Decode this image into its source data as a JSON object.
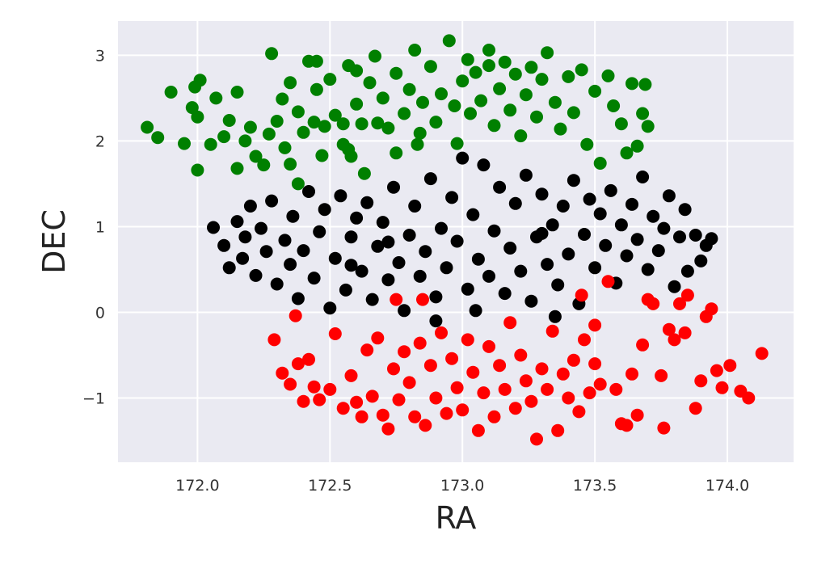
{
  "chart_data": {
    "type": "scatter",
    "title": "",
    "xlabel": "RA",
    "ylabel": "DEC",
    "xlim": [
      171.7,
      174.25
    ],
    "ylim": [
      -1.75,
      3.4
    ],
    "xticks": [
      172.0,
      172.5,
      173.0,
      173.5,
      174.0
    ],
    "xtick_labels": [
      "172.0",
      "172.5",
      "173.0",
      "173.5",
      "174.0"
    ],
    "yticks": [
      -1,
      0,
      1,
      2,
      3
    ],
    "ytick_labels": [
      "−1",
      "0",
      "1",
      "2",
      "3"
    ],
    "grid": true,
    "background": "#eaeaf2",
    "series": [
      {
        "color": "#008000",
        "points": [
          [
            171.81,
            2.16
          ],
          [
            171.85,
            2.04
          ],
          [
            171.9,
            2.57
          ],
          [
            171.95,
            1.97
          ],
          [
            171.98,
            2.39
          ],
          [
            171.99,
            2.63
          ],
          [
            172.0,
            2.28
          ],
          [
            172.01,
            2.71
          ],
          [
            172.0,
            1.66
          ],
          [
            172.05,
            1.96
          ],
          [
            172.07,
            2.5
          ],
          [
            172.1,
            2.05
          ],
          [
            172.12,
            2.24
          ],
          [
            172.15,
            1.68
          ],
          [
            172.15,
            2.57
          ],
          [
            172.18,
            2.0
          ],
          [
            172.2,
            2.16
          ],
          [
            172.22,
            1.82
          ],
          [
            172.25,
            1.72
          ],
          [
            172.27,
            2.08
          ],
          [
            172.3,
            2.23
          ],
          [
            172.28,
            3.02
          ],
          [
            172.32,
            2.49
          ],
          [
            172.33,
            1.92
          ],
          [
            172.35,
            2.68
          ],
          [
            172.35,
            1.73
          ],
          [
            172.38,
            2.34
          ],
          [
            172.4,
            2.1
          ],
          [
            172.42,
            2.93
          ],
          [
            172.44,
            2.22
          ],
          [
            172.45,
            2.6
          ],
          [
            172.47,
            1.83
          ],
          [
            172.48,
            2.17
          ],
          [
            172.5,
            2.72
          ],
          [
            172.52,
            2.3
          ],
          [
            172.55,
            1.96
          ],
          [
            172.57,
            2.88
          ],
          [
            172.58,
            1.82
          ],
          [
            172.6,
            2.43
          ],
          [
            172.62,
            2.2
          ],
          [
            172.63,
            1.62
          ],
          [
            172.65,
            2.68
          ],
          [
            172.67,
            2.99
          ],
          [
            172.7,
            2.5
          ],
          [
            172.72,
            2.15
          ],
          [
            172.75,
            2.79
          ],
          [
            172.75,
            1.86
          ],
          [
            172.78,
            2.32
          ],
          [
            172.8,
            2.6
          ],
          [
            172.82,
            3.06
          ],
          [
            172.84,
            2.09
          ],
          [
            172.85,
            2.45
          ],
          [
            172.88,
            2.87
          ],
          [
            172.9,
            2.22
          ],
          [
            172.92,
            2.55
          ],
          [
            172.95,
            3.17
          ],
          [
            172.97,
            2.41
          ],
          [
            172.98,
            1.97
          ],
          [
            173.0,
            2.7
          ],
          [
            173.02,
            2.95
          ],
          [
            173.03,
            2.32
          ],
          [
            173.05,
            2.8
          ],
          [
            173.07,
            2.47
          ],
          [
            173.1,
            3.06
          ],
          [
            173.12,
            2.18
          ],
          [
            173.14,
            2.61
          ],
          [
            173.16,
            2.92
          ],
          [
            173.18,
            2.36
          ],
          [
            173.2,
            2.78
          ],
          [
            173.22,
            2.06
          ],
          [
            173.24,
            2.54
          ],
          [
            173.26,
            2.86
          ],
          [
            173.28,
            2.28
          ],
          [
            173.3,
            2.72
          ],
          [
            173.32,
            3.03
          ],
          [
            173.35,
            2.45
          ],
          [
            173.37,
            2.14
          ],
          [
            173.4,
            2.75
          ],
          [
            173.42,
            2.33
          ],
          [
            173.45,
            2.83
          ],
          [
            173.47,
            1.96
          ],
          [
            173.5,
            2.58
          ],
          [
            173.52,
            1.74
          ],
          [
            173.55,
            2.76
          ],
          [
            173.57,
            2.41
          ],
          [
            173.6,
            2.2
          ],
          [
            173.62,
            1.86
          ],
          [
            173.64,
            2.67
          ],
          [
            173.66,
            1.94
          ],
          [
            173.68,
            2.32
          ],
          [
            173.69,
            2.66
          ],
          [
            173.7,
            2.17
          ],
          [
            172.45,
            2.93
          ],
          [
            172.6,
            2.82
          ],
          [
            172.55,
            2.2
          ],
          [
            173.1,
            2.88
          ],
          [
            172.68,
            2.21
          ],
          [
            172.83,
            1.96
          ],
          [
            172.38,
            1.5
          ],
          [
            172.57,
            1.9
          ]
        ]
      },
      {
        "color": "#000000",
        "points": [
          [
            172.06,
            0.99
          ],
          [
            172.1,
            0.78
          ],
          [
            172.12,
            0.52
          ],
          [
            172.15,
            1.06
          ],
          [
            172.17,
            0.63
          ],
          [
            172.18,
            0.88
          ],
          [
            172.2,
            1.24
          ],
          [
            172.22,
            0.43
          ],
          [
            172.24,
            0.98
          ],
          [
            172.26,
            0.71
          ],
          [
            172.28,
            1.3
          ],
          [
            172.3,
            0.33
          ],
          [
            172.33,
            0.84
          ],
          [
            172.35,
            0.56
          ],
          [
            172.36,
            1.12
          ],
          [
            172.38,
            0.16
          ],
          [
            172.4,
            0.72
          ],
          [
            172.42,
            1.41
          ],
          [
            172.44,
            0.4
          ],
          [
            172.46,
            0.94
          ],
          [
            172.48,
            1.2
          ],
          [
            172.5,
            0.05
          ],
          [
            172.52,
            0.63
          ],
          [
            172.54,
            1.36
          ],
          [
            172.56,
            0.26
          ],
          [
            172.58,
            0.88
          ],
          [
            172.6,
            1.1
          ],
          [
            172.62,
            0.48
          ],
          [
            172.64,
            1.28
          ],
          [
            172.66,
            0.15
          ],
          [
            172.68,
            0.77
          ],
          [
            172.7,
            1.05
          ],
          [
            172.72,
            0.38
          ],
          [
            172.74,
            1.46
          ],
          [
            172.76,
            0.58
          ],
          [
            172.78,
            0.02
          ],
          [
            172.8,
            0.9
          ],
          [
            172.82,
            1.24
          ],
          [
            172.84,
            0.42
          ],
          [
            172.86,
            0.71
          ],
          [
            172.88,
            1.56
          ],
          [
            172.9,
            0.18
          ],
          [
            172.92,
            0.98
          ],
          [
            172.94,
            0.52
          ],
          [
            172.96,
            1.34
          ],
          [
            172.98,
            0.83
          ],
          [
            173.0,
            1.8
          ],
          [
            173.02,
            0.27
          ],
          [
            173.04,
            1.14
          ],
          [
            173.06,
            0.62
          ],
          [
            173.08,
            1.72
          ],
          [
            173.1,
            0.42
          ],
          [
            173.12,
            0.95
          ],
          [
            173.14,
            1.46
          ],
          [
            173.16,
            0.22
          ],
          [
            173.18,
            0.75
          ],
          [
            173.2,
            1.27
          ],
          [
            173.22,
            0.48
          ],
          [
            173.24,
            1.6
          ],
          [
            173.26,
            0.13
          ],
          [
            173.28,
            0.88
          ],
          [
            173.3,
            1.38
          ],
          [
            173.32,
            0.56
          ],
          [
            173.34,
            1.02
          ],
          [
            173.36,
            0.32
          ],
          [
            173.38,
            1.24
          ],
          [
            173.4,
            0.68
          ],
          [
            173.42,
            1.54
          ],
          [
            173.44,
            0.1
          ],
          [
            173.46,
            0.91
          ],
          [
            173.48,
            1.32
          ],
          [
            173.5,
            0.52
          ],
          [
            173.52,
            1.15
          ],
          [
            173.54,
            0.78
          ],
          [
            173.56,
            1.42
          ],
          [
            173.58,
            0.34
          ],
          [
            173.6,
            1.02
          ],
          [
            173.62,
            0.66
          ],
          [
            173.64,
            1.26
          ],
          [
            173.66,
            0.85
          ],
          [
            173.68,
            1.58
          ],
          [
            173.7,
            0.5
          ],
          [
            173.72,
            1.12
          ],
          [
            173.74,
            0.72
          ],
          [
            173.76,
            0.98
          ],
          [
            173.78,
            1.36
          ],
          [
            173.8,
            0.3
          ],
          [
            173.82,
            0.88
          ],
          [
            173.84,
            1.2
          ],
          [
            173.85,
            0.48
          ],
          [
            173.88,
            0.9
          ],
          [
            173.9,
            0.6
          ],
          [
            173.92,
            0.78
          ],
          [
            173.94,
            0.86
          ],
          [
            172.72,
            0.82
          ],
          [
            172.9,
            -0.1
          ],
          [
            173.05,
            0.02
          ],
          [
            173.35,
            -0.05
          ],
          [
            173.3,
            0.92
          ],
          [
            172.58,
            0.55
          ]
        ]
      },
      {
        "color": "#ff0000",
        "points": [
          [
            172.29,
            -0.32
          ],
          [
            172.32,
            -0.71
          ],
          [
            172.35,
            -0.84
          ],
          [
            172.37,
            -0.04
          ],
          [
            172.38,
            -0.6
          ],
          [
            172.4,
            -1.04
          ],
          [
            172.42,
            -0.55
          ],
          [
            172.44,
            -0.87
          ],
          [
            172.46,
            -1.02
          ],
          [
            172.5,
            -0.9
          ],
          [
            172.52,
            -0.25
          ],
          [
            172.55,
            -1.12
          ],
          [
            172.58,
            -0.74
          ],
          [
            172.6,
            -1.05
          ],
          [
            172.62,
            -1.22
          ],
          [
            172.64,
            -0.44
          ],
          [
            172.66,
            -0.98
          ],
          [
            172.68,
            -0.3
          ],
          [
            172.7,
            -1.2
          ],
          [
            172.72,
            -1.36
          ],
          [
            172.74,
            -0.66
          ],
          [
            172.76,
            -1.02
          ],
          [
            172.78,
            -0.46
          ],
          [
            172.8,
            -0.82
          ],
          [
            172.82,
            -1.22
          ],
          [
            172.84,
            -0.36
          ],
          [
            172.86,
            -1.32
          ],
          [
            172.88,
            -0.62
          ],
          [
            172.9,
            -1.0
          ],
          [
            172.92,
            -0.24
          ],
          [
            172.94,
            -1.18
          ],
          [
            172.96,
            -0.54
          ],
          [
            172.98,
            -0.88
          ],
          [
            173.0,
            -1.14
          ],
          [
            173.02,
            -0.32
          ],
          [
            173.04,
            -0.7
          ],
          [
            173.06,
            -1.38
          ],
          [
            173.08,
            -0.94
          ],
          [
            173.1,
            -0.4
          ],
          [
            173.12,
            -1.22
          ],
          [
            173.14,
            -0.62
          ],
          [
            173.16,
            -0.9
          ],
          [
            173.18,
            -0.12
          ],
          [
            173.2,
            -1.12
          ],
          [
            173.22,
            -0.5
          ],
          [
            173.24,
            -0.8
          ],
          [
            173.26,
            -1.04
          ],
          [
            173.28,
            -1.48
          ],
          [
            173.3,
            -0.66
          ],
          [
            173.32,
            -0.9
          ],
          [
            173.34,
            -0.22
          ],
          [
            173.36,
            -1.38
          ],
          [
            173.38,
            -0.72
          ],
          [
            173.4,
            -1.0
          ],
          [
            173.42,
            -0.56
          ],
          [
            173.44,
            -1.16
          ],
          [
            173.46,
            -0.32
          ],
          [
            173.48,
            -0.94
          ],
          [
            173.5,
            -0.6
          ],
          [
            173.52,
            -0.84
          ],
          [
            173.55,
            0.36
          ],
          [
            173.58,
            -0.9
          ],
          [
            173.6,
            -1.3
          ],
          [
            173.62,
            -1.32
          ],
          [
            173.64,
            -0.72
          ],
          [
            173.66,
            -1.2
          ],
          [
            173.68,
            -0.38
          ],
          [
            173.7,
            0.15
          ],
          [
            173.72,
            0.1
          ],
          [
            173.75,
            -0.74
          ],
          [
            173.76,
            -1.35
          ],
          [
            173.78,
            -0.2
          ],
          [
            173.8,
            -0.32
          ],
          [
            173.82,
            0.1
          ],
          [
            173.84,
            -0.24
          ],
          [
            173.85,
            0.2
          ],
          [
            173.88,
            -1.12
          ],
          [
            173.9,
            -0.8
          ],
          [
            173.92,
            -0.05
          ],
          [
            173.94,
            0.04
          ],
          [
            173.96,
            -0.68
          ],
          [
            173.98,
            -0.88
          ],
          [
            174.01,
            -0.62
          ],
          [
            174.05,
            -0.92
          ],
          [
            174.08,
            -1.0
          ],
          [
            174.13,
            -0.48
          ],
          [
            172.75,
            0.15
          ],
          [
            172.85,
            0.15
          ],
          [
            173.45,
            0.2
          ],
          [
            173.5,
            -0.15
          ]
        ]
      }
    ]
  }
}
